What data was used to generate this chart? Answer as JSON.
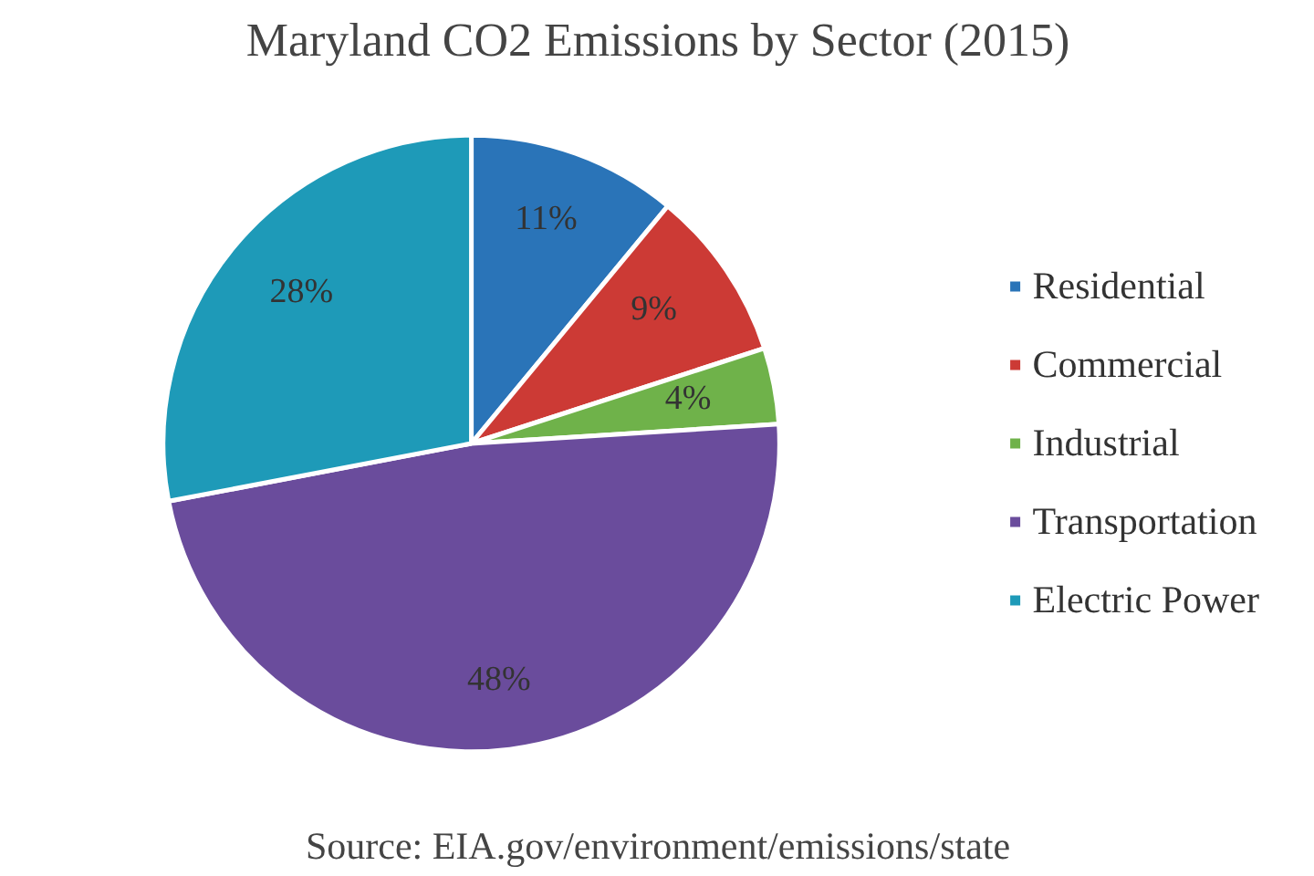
{
  "chart_data": {
    "type": "pie",
    "title": "Maryland CO2 Emissions by Sector (2015)",
    "categories": [
      "Residential",
      "Commercial",
      "Industrial",
      "Transportation",
      "Electric Power"
    ],
    "values": [
      11,
      9,
      4,
      48,
      28
    ],
    "value_labels": [
      "11%",
      "9%",
      "4%",
      "48%",
      "28%"
    ],
    "colors": [
      "#2a74b8",
      "#cc3a35",
      "#6fb24a",
      "#6a4c9c",
      "#1e9ab8"
    ],
    "legend": "right",
    "annotations": [
      "Source: EIA.gov/environment/emissions/state"
    ]
  }
}
